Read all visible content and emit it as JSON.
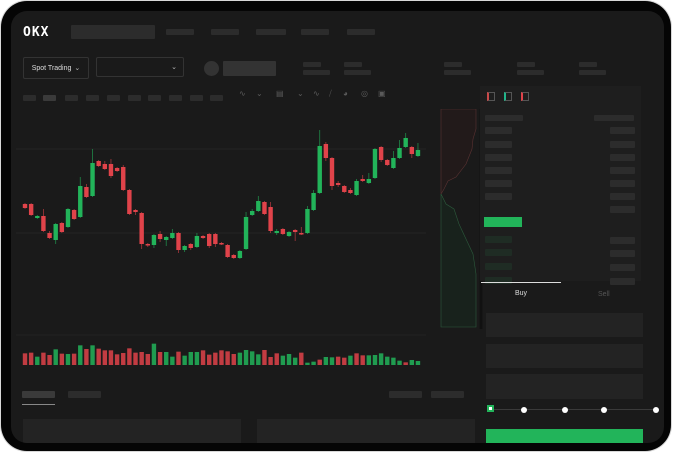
{
  "header": {
    "logo": "OKX"
  },
  "toolbar": {
    "market_selector": "Spot Trading",
    "pair_selector": ""
  },
  "trade_panel": {
    "tabs": [
      {
        "label": "Buy",
        "active": true
      },
      {
        "label": "Sell",
        "active": false
      }
    ],
    "leverage_slider_position": 0
  },
  "colors": {
    "up": "#22b45a",
    "down": "#e0434a",
    "background": "#1a1a1a",
    "bezel": "#050505"
  },
  "icons": [
    "chevron-down-icon",
    "indicator-icon",
    "line-tool-icon",
    "ruler-icon",
    "camera-icon",
    "settings-icon",
    "fullscreen-icon",
    "orderbook-both-icon",
    "orderbook-bids-icon",
    "orderbook-asks-icon"
  ],
  "chart_data": {
    "type": "candlestick",
    "candles": [
      [
        97,
        98,
        92,
        93
      ],
      [
        97,
        98,
        85,
        86
      ],
      [
        83,
        86,
        82,
        85
      ],
      [
        85,
        92,
        69,
        70
      ],
      [
        68,
        70,
        62,
        63
      ],
      [
        61,
        78,
        57,
        77
      ],
      [
        78,
        79,
        68,
        69
      ],
      [
        74,
        93,
        73,
        92
      ],
      [
        91,
        92,
        81,
        82
      ],
      [
        84,
        124,
        83,
        115
      ],
      [
        114,
        117,
        103,
        104
      ],
      [
        105,
        152,
        104,
        138
      ],
      [
        140,
        141,
        134,
        135
      ],
      [
        137,
        140,
        131,
        132
      ],
      [
        137,
        142,
        123,
        125
      ],
      [
        133,
        134,
        129,
        130
      ],
      [
        134,
        136,
        110,
        111
      ],
      [
        111,
        112,
        86,
        87
      ],
      [
        91,
        92,
        86,
        89
      ],
      [
        88,
        89,
        52,
        57
      ],
      [
        57,
        58,
        54,
        56
      ],
      [
        56,
        67,
        53,
        66
      ],
      [
        67,
        70,
        59,
        62
      ],
      [
        61,
        65,
        55,
        64
      ],
      [
        63,
        72,
        62,
        68
      ],
      [
        68,
        69,
        48,
        51
      ],
      [
        51,
        56,
        49,
        55
      ],
      [
        57,
        58,
        51,
        53
      ],
      [
        54,
        68,
        53,
        65
      ],
      [
        65,
        66,
        62,
        63
      ],
      [
        67,
        68,
        53,
        55
      ],
      [
        67,
        68,
        54,
        57
      ],
      [
        58,
        59,
        56,
        57
      ],
      [
        56,
        57,
        43,
        44
      ],
      [
        46,
        47,
        42,
        43
      ],
      [
        43,
        51,
        42,
        50
      ],
      [
        52,
        89,
        51,
        84
      ],
      [
        86,
        92,
        85,
        90
      ],
      [
        90,
        105,
        89,
        100
      ],
      [
        99,
        100,
        86,
        87
      ],
      [
        94,
        99,
        68,
        70
      ],
      [
        68,
        72,
        66,
        70
      ],
      [
        72,
        73,
        66,
        67
      ],
      [
        65,
        70,
        64,
        69
      ],
      [
        71,
        72,
        60,
        69
      ],
      [
        68,
        74,
        66,
        67
      ],
      [
        68,
        95,
        67,
        92
      ],
      [
        91,
        111,
        90,
        108
      ],
      [
        108,
        171,
        107,
        155
      ],
      [
        157,
        159,
        140,
        143
      ],
      [
        143,
        144,
        111,
        115
      ],
      [
        118,
        120,
        114,
        116
      ],
      [
        115,
        116,
        108,
        109
      ],
      [
        111,
        113,
        107,
        108
      ],
      [
        106,
        122,
        105,
        120
      ],
      [
        122,
        126,
        119,
        120
      ],
      [
        118,
        128,
        117,
        122
      ],
      [
        123,
        153,
        122,
        152
      ],
      [
        154,
        155,
        139,
        141
      ],
      [
        141,
        142,
        135,
        136
      ],
      [
        133,
        150,
        132,
        143
      ],
      [
        143,
        161,
        142,
        153
      ],
      [
        154,
        168,
        153,
        163
      ],
      [
        154,
        155,
        143,
        147
      ],
      [
        145,
        158,
        144,
        151
      ]
    ],
    "volume": [
      35,
      37,
      25,
      37,
      30,
      47,
      34,
      33,
      34,
      59,
      48,
      59,
      49,
      44,
      44,
      32,
      36,
      50,
      37,
      39,
      33,
      64,
      39,
      39,
      25,
      40,
      28,
      39,
      39,
      44,
      31,
      37,
      44,
      41,
      33,
      37,
      45,
      41,
      32,
      45,
      24,
      35,
      28,
      33,
      22,
      37,
      7,
      10,
      16,
      24,
      23,
      25,
      22,
      28,
      35,
      29,
      29,
      30,
      35,
      25,
      22,
      13,
      8,
      15,
      12
    ],
    "volume_up": [
      false,
      false,
      true,
      false,
      false,
      true,
      false,
      true,
      false,
      true,
      false,
      true,
      false,
      false,
      false,
      false,
      false,
      false,
      false,
      false,
      false,
      true,
      false,
      true,
      true,
      false,
      true,
      true,
      true,
      false,
      false,
      false,
      false,
      false,
      false,
      true,
      true,
      true,
      true,
      false,
      false,
      false,
      true,
      true,
      true,
      false,
      true,
      true,
      false,
      true,
      true,
      false,
      false,
      true,
      false,
      false,
      true,
      true,
      true,
      true,
      true,
      true,
      false,
      true,
      true
    ]
  }
}
